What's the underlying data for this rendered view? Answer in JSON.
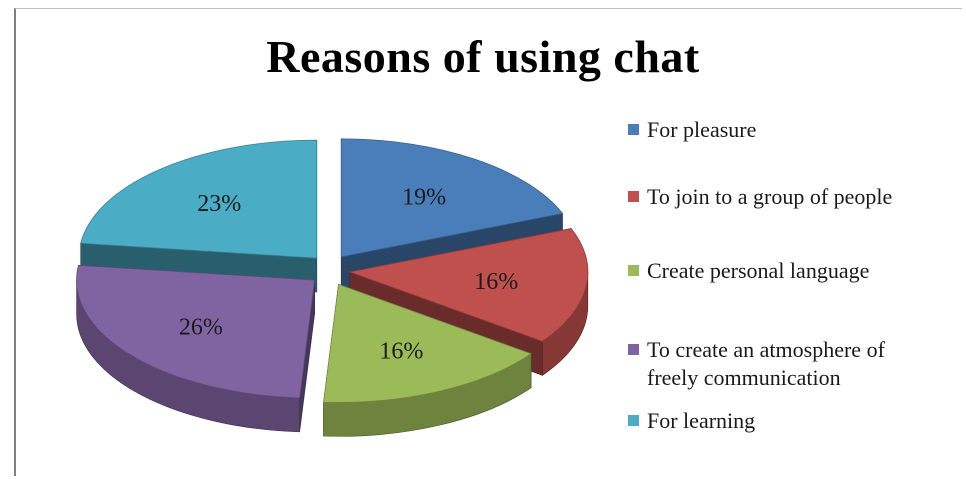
{
  "chart_data": {
    "type": "pie",
    "title": "Reasons of using chat",
    "categories": [
      "For pleasure",
      "To join to a group of people",
      "Create personal language",
      "To create an atmosphere of freely communication",
      "For learning"
    ],
    "values": [
      19,
      16,
      16,
      26,
      23
    ],
    "labels": [
      "19%",
      "16%",
      "16%",
      "26%",
      "23%"
    ],
    "colors": [
      "#4a7ebb",
      "#c0504d",
      "#9bbb59",
      "#8064a2",
      "#4bacc6"
    ],
    "legend_position": "right",
    "exploded": true,
    "three_d": true
  }
}
